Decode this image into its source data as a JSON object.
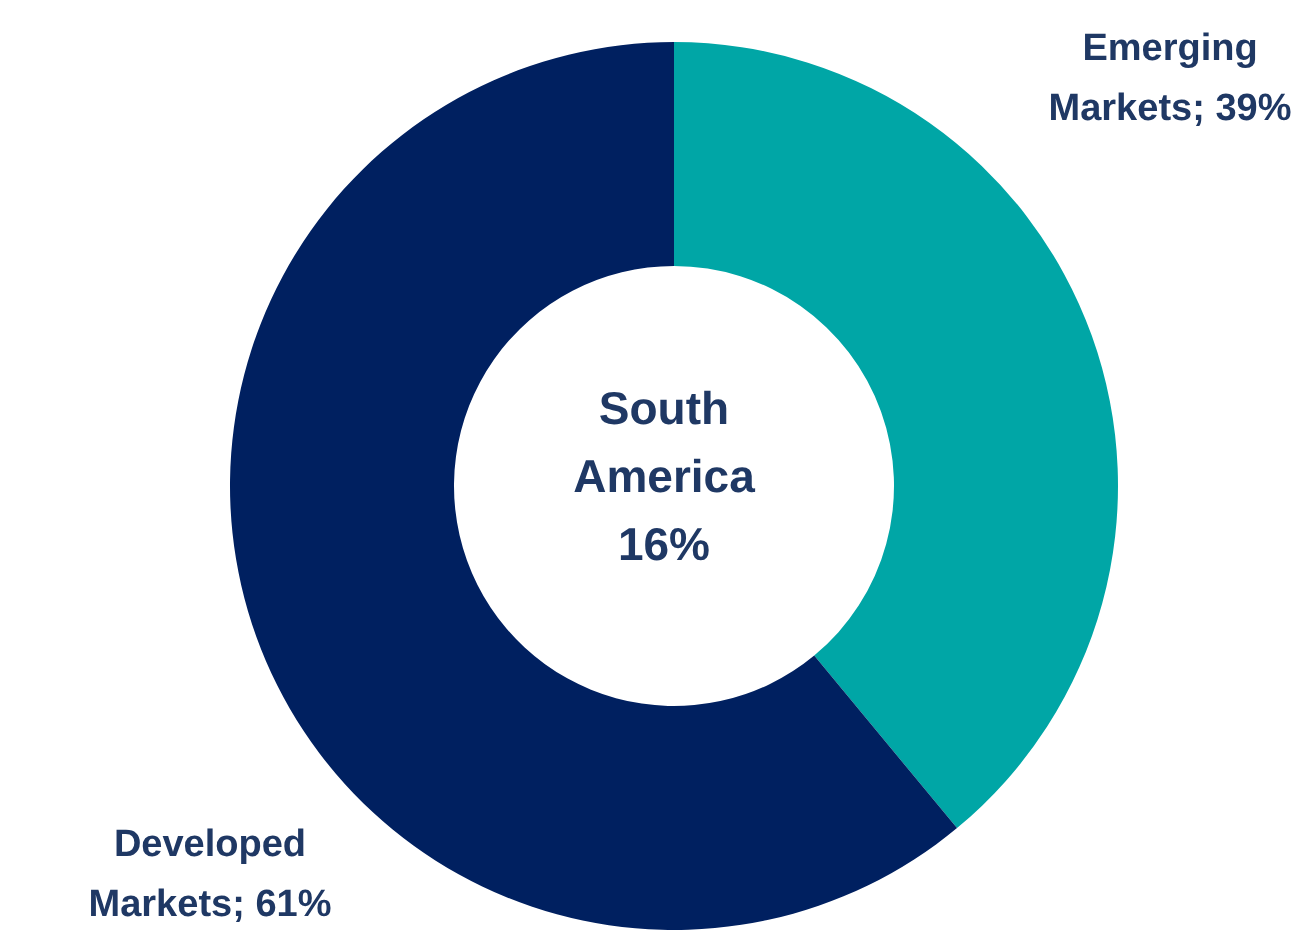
{
  "chart_data": {
    "type": "donut",
    "categories": [
      "Emerging Markets",
      "Developed Markets"
    ],
    "values": [
      39,
      61
    ],
    "colors": [
      "#00a6a6",
      "#002060"
    ],
    "value_labels": [
      "39%",
      "61%"
    ],
    "annotations": [
      "South America 16%"
    ],
    "legend": false
  }
}
